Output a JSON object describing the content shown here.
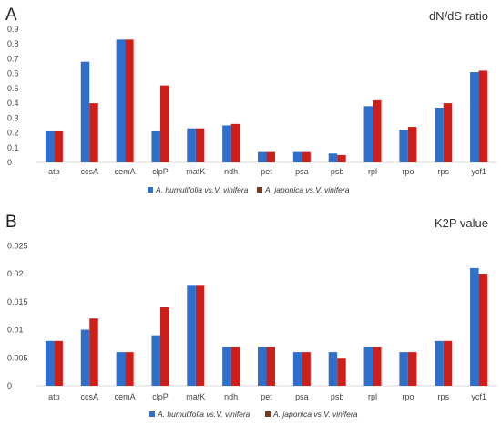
{
  "colors": {
    "series1": "#2f6fcc",
    "series2": "#cc1f1a",
    "legend2_swatch": "#7a3a1a"
  },
  "chart_data": [
    {
      "type": "bar",
      "panel": "A",
      "title": "dN/dS ratio",
      "categories": [
        "atp",
        "ccsA",
        "cemA",
        "clpP",
        "matK",
        "ndh",
        "pet",
        "psa",
        "psb",
        "rpl",
        "rpo",
        "rps",
        "ycf1"
      ],
      "series": [
        {
          "name": "A. humulifolia vs.V. vinifera",
          "values": [
            0.21,
            0.68,
            0.83,
            0.21,
            0.23,
            0.25,
            0.07,
            0.07,
            0.06,
            0.38,
            0.22,
            0.37,
            0.61
          ]
        },
        {
          "name": "A. japonica vs.V. vinifera",
          "values": [
            0.21,
            0.4,
            0.83,
            0.52,
            0.23,
            0.26,
            0.07,
            0.07,
            0.05,
            0.42,
            0.24,
            0.4,
            0.62
          ]
        }
      ],
      "ylim": [
        0,
        0.9
      ],
      "yticks": [
        "0",
        "0.1",
        "0.2",
        "0.3",
        "0.4",
        "0.5",
        "0.6",
        "0.7",
        "0.8",
        "0.9"
      ],
      "legend": "bottom"
    },
    {
      "type": "bar",
      "panel": "B",
      "title": "K2P value",
      "categories": [
        "atp",
        "ccsA",
        "cemA",
        "clpP",
        "matK",
        "ndh",
        "pet",
        "psa",
        "psb",
        "rpl",
        "rpo",
        "rps",
        "ycf1"
      ],
      "series": [
        {
          "name": "A. humulifolia vs.V. vinifera",
          "values": [
            0.008,
            0.01,
            0.006,
            0.009,
            0.018,
            0.007,
            0.007,
            0.006,
            0.006,
            0.007,
            0.006,
            0.008,
            0.021
          ]
        },
        {
          "name": "A. japonica vs.V. vinifera",
          "values": [
            0.008,
            0.012,
            0.006,
            0.014,
            0.018,
            0.007,
            0.007,
            0.006,
            0.005,
            0.007,
            0.006,
            0.008,
            0.02
          ]
        }
      ],
      "ylim": [
        0,
        0.027
      ],
      "yticks": [
        "0",
        "0.005",
        "0.01",
        "0.015",
        "0.02",
        "0.025"
      ],
      "legend": "bottom"
    }
  ]
}
